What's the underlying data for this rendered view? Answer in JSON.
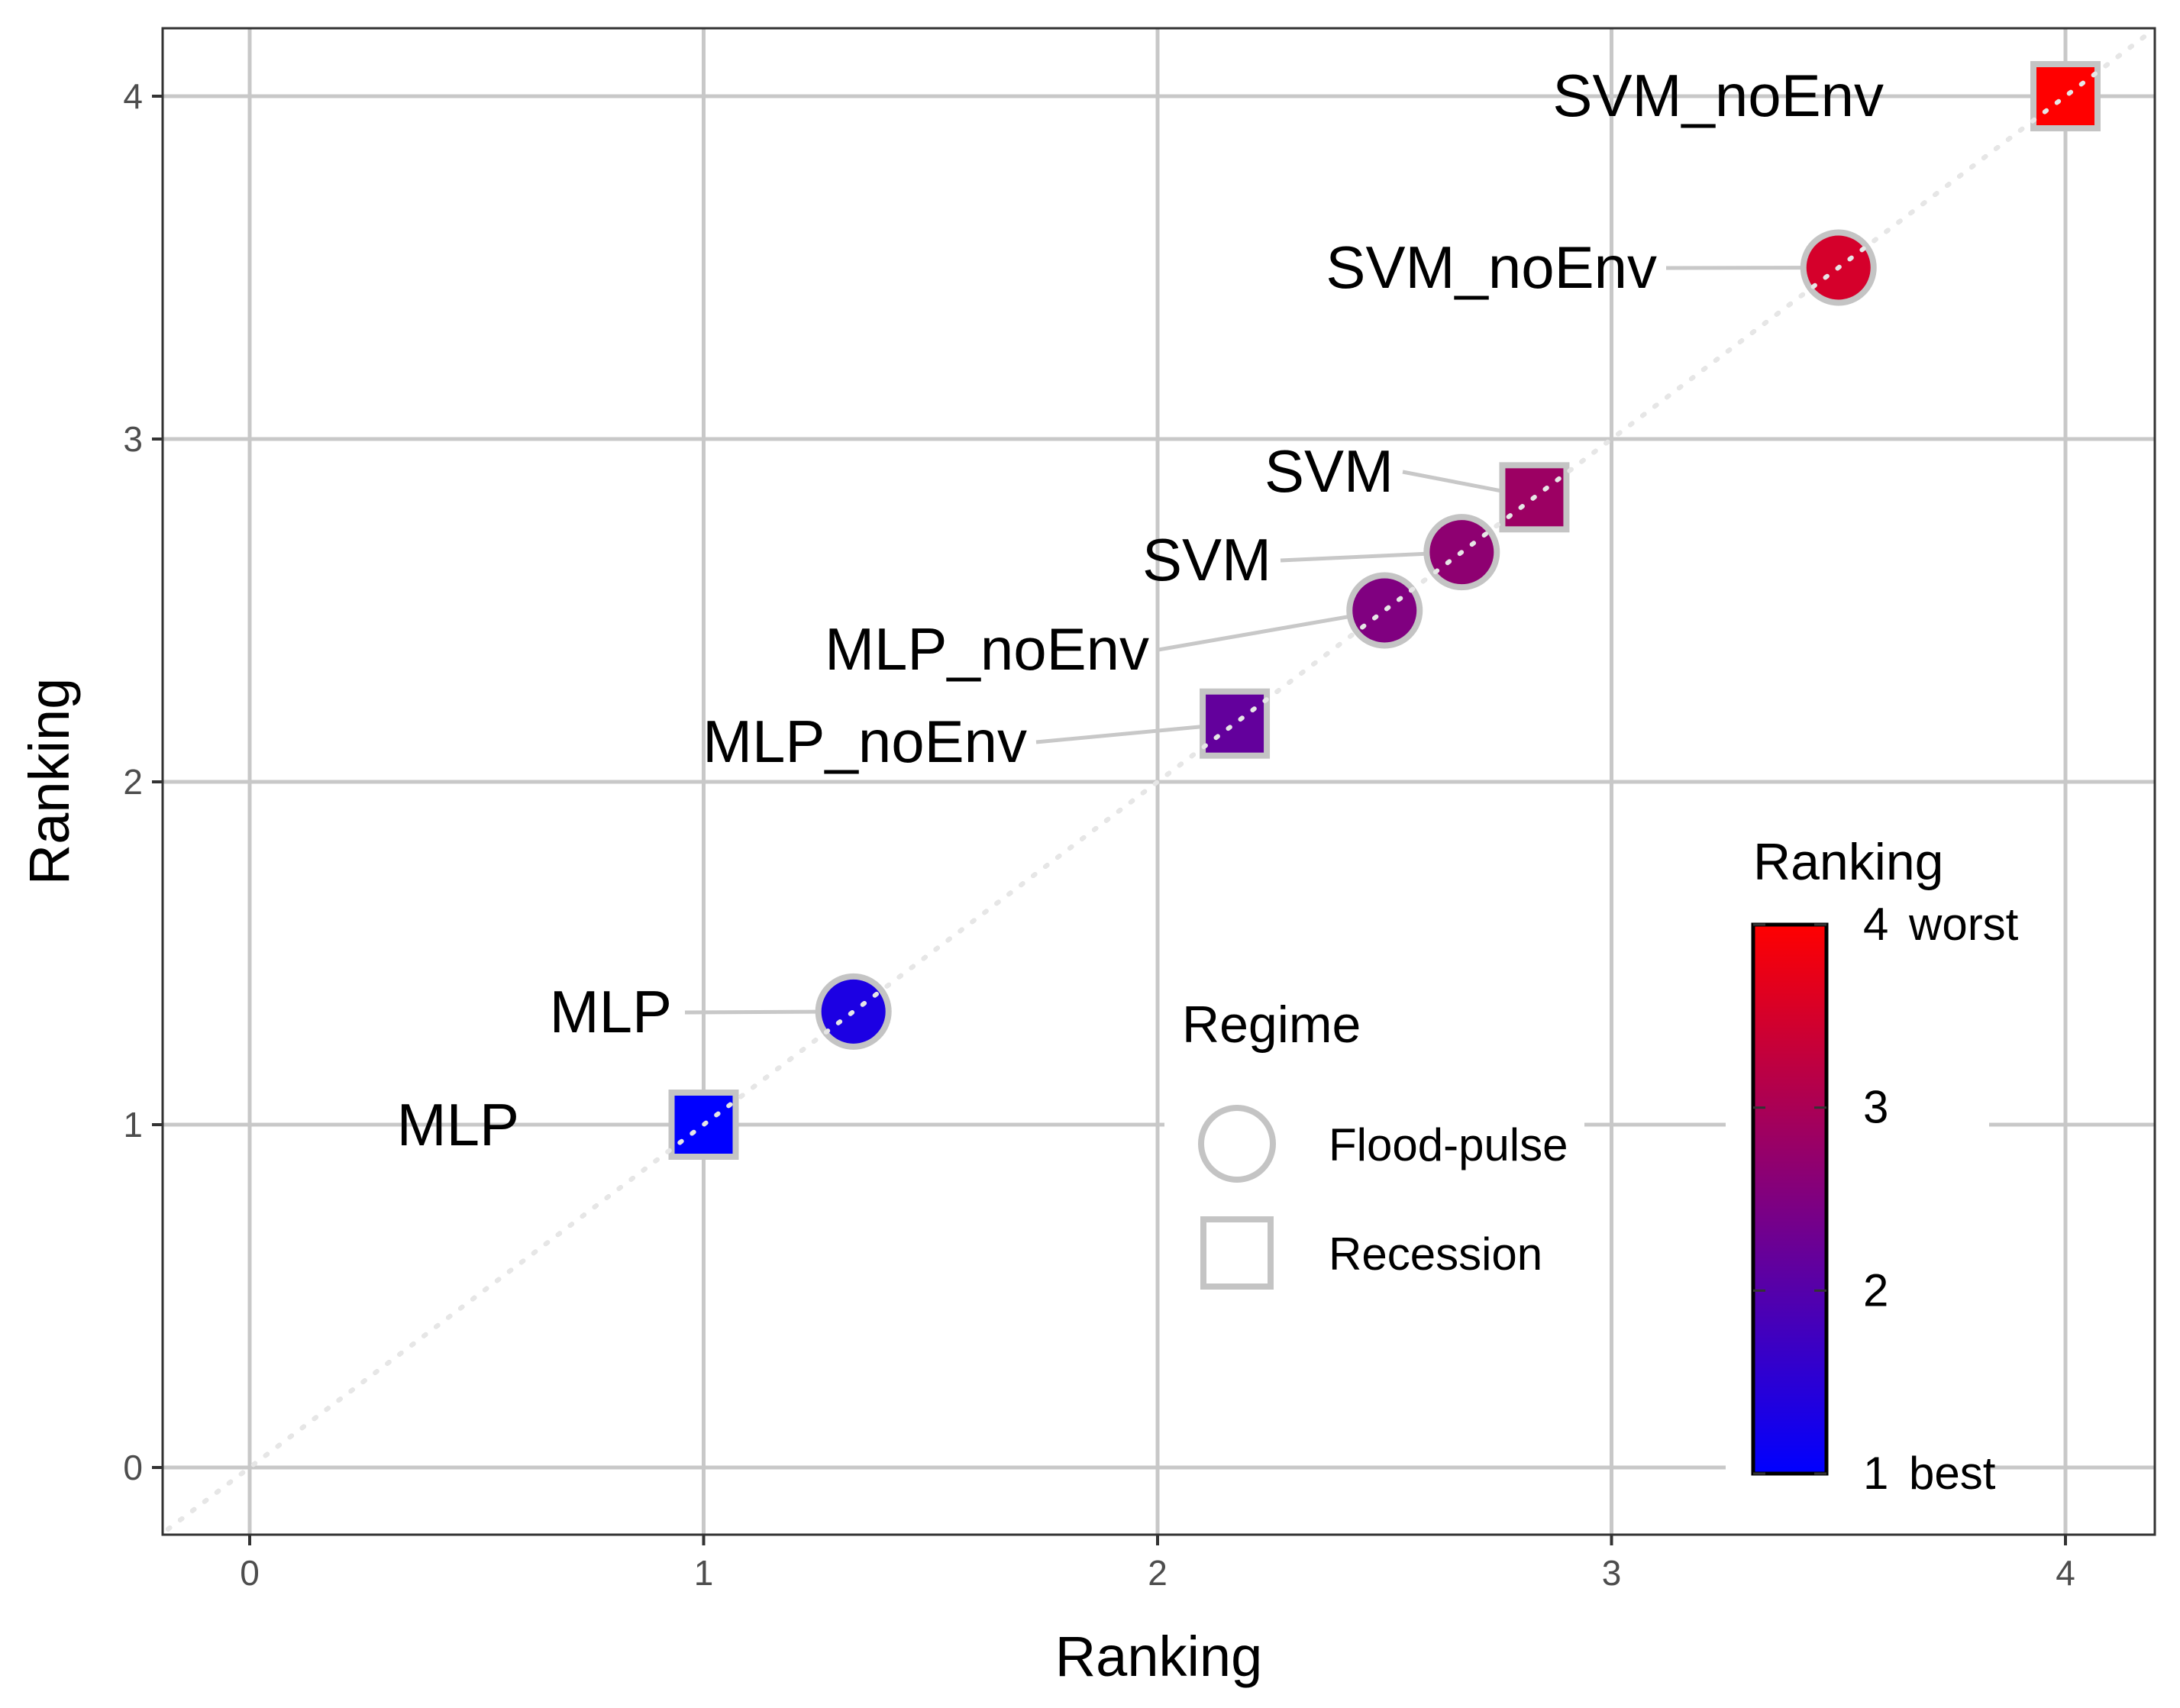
{
  "chart_data": {
    "type": "scatter",
    "xlabel": "Ranking",
    "ylabel": "Ranking",
    "xlim": [
      -0.2,
      4.2
    ],
    "ylim": [
      -0.2,
      4.2
    ],
    "x_ticks": [
      "0",
      "1",
      "2",
      "3",
      "4"
    ],
    "y_ticks": [
      "0",
      "1",
      "2",
      "3",
      "4"
    ],
    "grid": true,
    "reference_line": "y = x (dotted)",
    "points": [
      {
        "label": "MLP",
        "regime": "Recession",
        "x": 1.0,
        "y": 1.0,
        "value": 1.0
      },
      {
        "label": "MLP",
        "regime": "Flood-pulse",
        "x": 1.33,
        "y": 1.33,
        "value": 1.33
      },
      {
        "label": "MLP_noEnv",
        "regime": "Recession",
        "x": 2.17,
        "y": 2.17,
        "value": 2.17
      },
      {
        "label": "MLP_noEnv",
        "regime": "Flood-pulse",
        "x": 2.5,
        "y": 2.5,
        "value": 2.5
      },
      {
        "label": "SVM",
        "regime": "Flood-pulse",
        "x": 2.67,
        "y": 2.67,
        "value": 2.67
      },
      {
        "label": "SVM",
        "regime": "Recession",
        "x": 2.83,
        "y": 2.83,
        "value": 2.83
      },
      {
        "label": "SVM_noEnv",
        "regime": "Flood-pulse",
        "x": 3.5,
        "y": 3.5,
        "value": 3.5
      },
      {
        "label": "SVM_noEnv",
        "regime": "Recession",
        "x": 4.0,
        "y": 4.0,
        "value": 4.0
      }
    ],
    "legend_shape": {
      "title": "Regime",
      "placement": "bottom-right",
      "items": [
        {
          "label": "Flood-pulse",
          "shape": "circle"
        },
        {
          "label": "Recession",
          "shape": "square"
        }
      ]
    },
    "legend_color": {
      "title": "Ranking",
      "placement": "right",
      "range": [
        1,
        4
      ],
      "ticks": [
        "1",
        "2",
        "3",
        "4"
      ],
      "low_note": "best",
      "high_note": "worst",
      "colors": [
        "#0000ff",
        "#ff0000"
      ]
    }
  }
}
